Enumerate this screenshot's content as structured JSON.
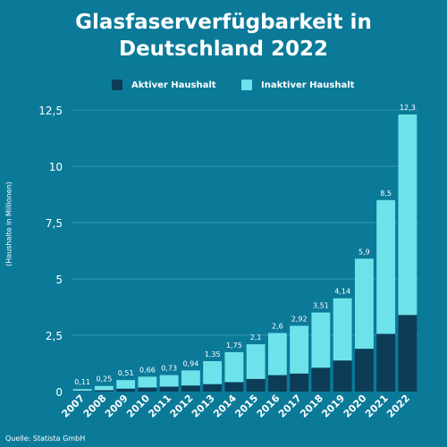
{
  "title_line1": "Glasfaserverfügbarkeit in",
  "title_line2": "Deutschland 2022",
  "legend": [
    {
      "label": "Aktiver Haushalt",
      "color": "#0d3c57"
    },
    {
      "label": "Inaktiver Haushalt",
      "color": "#6ee2ea"
    }
  ],
  "source": "Quelle: Statista GmbH",
  "colors": {
    "background": "#0b7a99",
    "grid": "#2d95b0",
    "active": "#0d3c57",
    "inactive": "#6ee2ea",
    "text": "#ffffff"
  },
  "chart_data": {
    "type": "bar",
    "stacked": true,
    "title": "Glasfaserverfügbarkeit in Deutschland 2022",
    "ylabel": "(Haushalte in Millionen)",
    "xlabel": "",
    "categories": [
      "2007",
      "2008",
      "2009",
      "2010",
      "2011",
      "2012",
      "2013",
      "2014",
      "2015",
      "2016",
      "2017",
      "2018",
      "2019",
      "2020",
      "2021",
      "2022"
    ],
    "series": [
      {
        "name": "Aktiver Haushalt",
        "values": [
          0.03,
          0.06,
          0.13,
          0.18,
          0.22,
          0.27,
          0.33,
          0.42,
          0.56,
          0.73,
          0.8,
          1.06,
          1.38,
          1.9,
          2.56,
          3.4
        ]
      },
      {
        "name": "Inaktiver Haushalt",
        "values": [
          0.08,
          0.19,
          0.38,
          0.48,
          0.51,
          0.67,
          1.02,
          1.33,
          1.54,
          1.87,
          2.12,
          2.45,
          2.76,
          4.0,
          5.94,
          8.9
        ]
      }
    ],
    "totals_labels": [
      "0,11",
      "0,25",
      "0,51",
      "0,66",
      "0,73",
      "0,94",
      "1,35",
      "1,75",
      "2,1",
      "2,6",
      "2,92",
      "3,51",
      "4,14",
      "5,9",
      "8,5",
      "12,3"
    ],
    "yticks": [
      0,
      2.5,
      5,
      7.5,
      10,
      12.5
    ],
    "ytick_labels": [
      "0",
      "2,5",
      "5",
      "7,5",
      "10",
      "12,5"
    ],
    "ylim": [
      0,
      12.5
    ],
    "grid": true,
    "legend_position": "top"
  }
}
